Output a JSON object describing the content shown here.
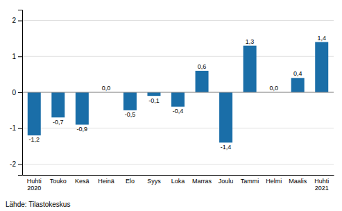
{
  "chart_data": {
    "type": "bar",
    "categories": [
      "Huhti\n2020",
      "Touko",
      "Kesä",
      "Heinä",
      "Elo",
      "Syys",
      "Loka",
      "Marras",
      "Joulu",
      "Tammi",
      "Helmi",
      "Maalis",
      "Huhti\n2021"
    ],
    "values": [
      -1.2,
      -0.7,
      -0.9,
      0.0,
      -0.5,
      -0.1,
      -0.4,
      0.6,
      -1.4,
      1.3,
      0.0,
      0.4,
      1.4
    ],
    "value_labels": [
      "-1,2",
      "-0,7",
      "-0,9",
      "0,0",
      "-0,5",
      "-0,1",
      "-0,4",
      "0,6",
      "-1,4",
      "1,3",
      "0,0",
      "0,4",
      "1,4"
    ],
    "color": "#1a6ea8",
    "ylim": [
      -2.3,
      2.3
    ],
    "yticks": [
      -2,
      -1,
      0,
      1,
      2
    ],
    "grid": true,
    "data_labels": true,
    "annotations": [
      "Lähde: Tilastokeskus"
    ]
  }
}
